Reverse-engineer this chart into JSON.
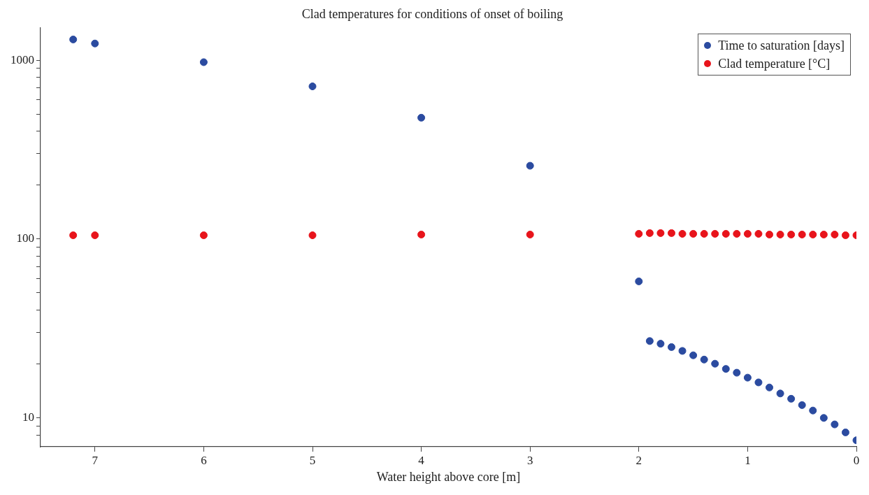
{
  "chart_data": {
    "type": "scatter",
    "title": "Clad temperatures for conditions of onset of boiling",
    "xlabel": "Water height above core [m]",
    "xlim": [
      7.5,
      0
    ],
    "xticks": [
      7,
      6,
      5,
      4,
      3,
      2,
      1,
      0
    ],
    "ylim": [
      6.9,
      1520
    ],
    "yticks": [
      {
        "value": 8,
        "label": null
      },
      {
        "value": 9,
        "label": null
      },
      10,
      {
        "value": 20,
        "label": null
      },
      {
        "value": 30,
        "label": null
      },
      {
        "value": 40,
        "label": null
      },
      {
        "value": 50,
        "label": null
      },
      {
        "value": 60,
        "label": null
      },
      {
        "value": 70,
        "label": null
      },
      {
        "value": 80,
        "label": null
      },
      {
        "value": 90,
        "label": null
      },
      100,
      {
        "value": 200,
        "label": null
      },
      {
        "value": 300,
        "label": null
      },
      {
        "value": 400,
        "label": null
      },
      {
        "value": 500,
        "label": null
      },
      {
        "value": 600,
        "label": null
      },
      {
        "value": 700,
        "label": null
      },
      {
        "value": 800,
        "label": null
      },
      {
        "value": 900,
        "label": null
      },
      1000
    ],
    "log": "y",
    "grid": false,
    "legend": "top right",
    "marker": "circle",
    "series": [
      {
        "name": "Time to saturation [days]",
        "color": "#2b4ba0",
        "x": [
          7.2,
          7,
          6,
          5,
          4,
          3,
          2,
          1.9,
          1.8,
          1.7,
          1.6,
          1.5,
          1.4,
          1.3,
          1.2,
          1.1,
          1.0,
          0.9,
          0.8,
          0.7,
          0.6,
          0.5,
          0.4,
          0.3,
          0.2,
          0.1,
          0
        ],
        "values": [
          1306,
          1240,
          975,
          714,
          477,
          257,
          58,
          26.9,
          26.0,
          24.9,
          23.7,
          22.4,
          21.2,
          20.1,
          18.8,
          17.9,
          16.8,
          15.8,
          14.8,
          13.7,
          12.8,
          11.8,
          11.0,
          10.0,
          9.2,
          8.3,
          7.5
        ]
      },
      {
        "name": "Clad temperature [°C]",
        "color": "#e8141b",
        "x": [
          7.2,
          7,
          6,
          5,
          4,
          3,
          2,
          1.9,
          1.8,
          1.7,
          1.6,
          1.5,
          1.4,
          1.3,
          1.2,
          1.1,
          1.0,
          0.9,
          0.8,
          0.7,
          0.6,
          0.5,
          0.4,
          0.3,
          0.2,
          0.1,
          0
        ],
        "values": [
          105,
          105,
          105,
          105,
          106,
          106,
          107,
          108,
          108,
          108,
          107,
          107,
          107,
          107,
          107,
          107,
          107,
          107,
          106,
          106,
          106,
          106,
          106,
          106,
          106,
          105,
          105
        ]
      }
    ]
  }
}
